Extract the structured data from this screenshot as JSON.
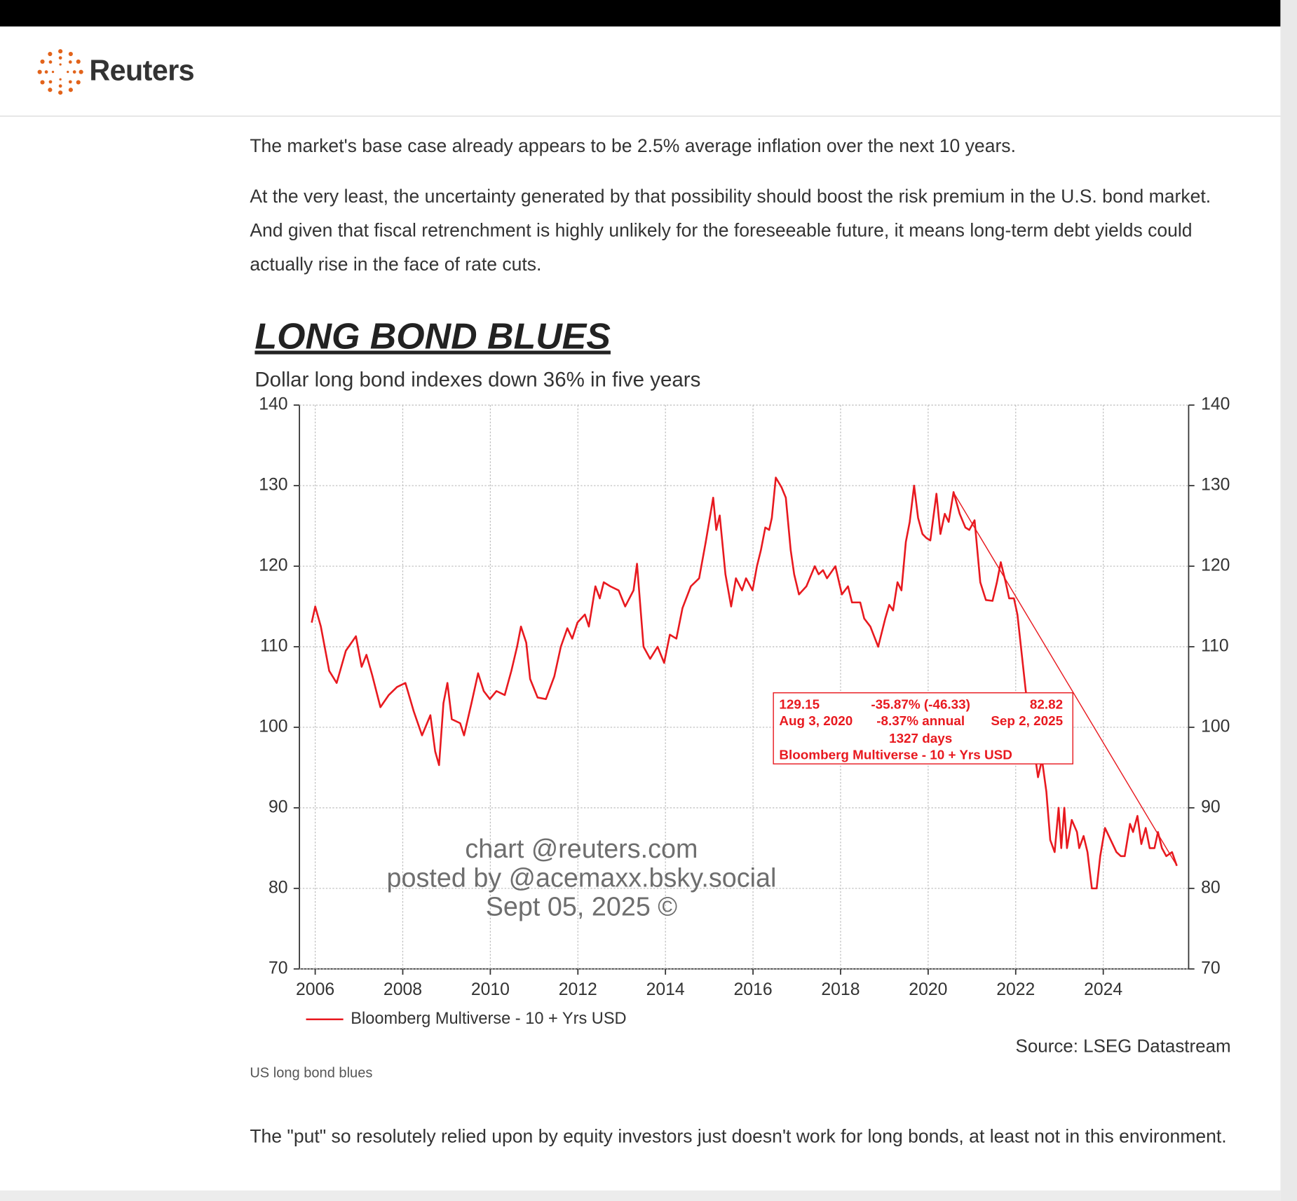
{
  "header": {
    "brand": "Reuters"
  },
  "article": {
    "paragraphs": [
      "The market's base case already appears to be 2.5% average inflation over the next 10 years.",
      "At the very least, the uncertainty generated by that possibility should boost the risk premium in the U.S. bond market. And given that fiscal retrenchment is highly unlikely for the foreseeable future, it means long-term debt yields could actually rise in the face of rate cuts."
    ],
    "caption": "US long bond blues",
    "closing": "The \"put\" so resolutely relied upon by equity investors just doesn't work for long bonds, at least not in this environment."
  },
  "chart_data": {
    "type": "line",
    "title": "LONG BOND BLUES",
    "subtitle": "Dollar long bond indexes down 36% in five years",
    "source": "Source: LSEG Datastream",
    "watermark": [
      "chart @reuters.com",
      "posted by @acemaxx.bsky.social",
      "Sept 05, 2025 ©"
    ],
    "x": [
      2005.92,
      2006.0,
      2006.13,
      2006.32,
      2006.49,
      2006.7,
      2006.93,
      2007.06,
      2007.17,
      2007.3,
      2007.49,
      2007.68,
      2007.87,
      2008.06,
      2008.25,
      2008.44,
      2008.63,
      2008.74,
      2008.83,
      2008.93,
      2009.02,
      2009.12,
      2009.31,
      2009.4,
      2009.57,
      2009.72,
      2009.85,
      2009.99,
      2010.14,
      2010.33,
      2010.48,
      2010.61,
      2010.7,
      2010.82,
      2010.91,
      2011.08,
      2011.27,
      2011.46,
      2011.61,
      2011.76,
      2011.87,
      2011.99,
      2012.16,
      2012.25,
      2012.4,
      2012.5,
      2012.59,
      2012.74,
      2012.93,
      2013.08,
      2013.27,
      2013.35,
      2013.5,
      2013.65,
      2013.82,
      2013.97,
      2014.1,
      2014.25,
      2014.39,
      2014.58,
      2014.77,
      2014.92,
      2015.09,
      2015.16,
      2015.24,
      2015.37,
      2015.5,
      2015.61,
      2015.75,
      2015.84,
      2015.99,
      2016.09,
      2016.18,
      2016.28,
      2016.37,
      2016.43,
      2016.52,
      2016.65,
      2016.75,
      2016.86,
      2016.94,
      2017.05,
      2017.22,
      2017.41,
      2017.5,
      2017.6,
      2017.69,
      2017.88,
      2018.03,
      2018.17,
      2018.26,
      2018.45,
      2018.54,
      2018.68,
      2018.86,
      2019.02,
      2019.11,
      2019.2,
      2019.3,
      2019.39,
      2019.49,
      2019.58,
      2019.68,
      2019.77,
      2019.87,
      2019.96,
      2020.05,
      2020.19,
      2020.28,
      2020.38,
      2020.47,
      2020.58,
      2020.72,
      2020.85,
      2020.94,
      2021.06,
      2021.19,
      2021.32,
      2021.47,
      2021.57,
      2021.66,
      2021.77,
      2021.85,
      2021.96,
      2022.04,
      2022.23,
      2022.38,
      2022.51,
      2022.6,
      2022.7,
      2022.79,
      2022.89,
      2022.98,
      2023.04,
      2023.11,
      2023.17,
      2023.28,
      2023.4,
      2023.45,
      2023.55,
      2023.64,
      2023.74,
      2023.85,
      2023.93,
      2024.04,
      2024.17,
      2024.3,
      2024.4,
      2024.49,
      2024.61,
      2024.68,
      2024.78,
      2024.87,
      2024.97,
      2025.06,
      2025.17,
      2025.25,
      2025.34,
      2025.44,
      2025.57,
      2025.68
    ],
    "series": [
      {
        "name": "Bloomberg Multiverse - 10 + Yrs USD",
        "color": "#e8191f",
        "values": [
          113,
          115,
          112.5,
          107,
          105.5,
          109.5,
          111.3,
          107.5,
          109,
          106.5,
          102.5,
          104,
          105,
          105.5,
          102,
          99,
          101.5,
          97,
          95.3,
          103,
          105.5,
          101,
          100.5,
          99,
          103,
          106.7,
          104.5,
          103.5,
          104.5,
          104,
          107,
          110,
          112.5,
          110.5,
          106,
          103.7,
          103.5,
          106.3,
          110,
          112.3,
          111,
          113,
          114,
          112.5,
          117.5,
          116,
          118,
          117.5,
          117,
          115,
          117,
          120.3,
          110,
          108.5,
          110,
          108,
          111.5,
          111,
          114.8,
          117.5,
          118.5,
          123,
          128.5,
          124.5,
          126.3,
          119,
          115,
          118.5,
          117,
          118.5,
          117,
          120,
          122,
          124.8,
          124.5,
          126,
          131,
          129.8,
          128.5,
          122,
          119,
          116.5,
          117.5,
          120,
          119,
          119.5,
          118.5,
          120,
          116.5,
          117.5,
          115.5,
          115.5,
          113.5,
          112.5,
          110,
          113.5,
          115.2,
          114.5,
          118,
          117,
          123,
          125.5,
          130,
          126,
          124,
          123.5,
          123.2,
          129,
          124,
          126.5,
          125.5,
          129.2,
          126.5,
          124.8,
          124.5,
          125.7,
          118,
          115.8,
          115.7,
          118,
          120.5,
          118,
          116,
          116,
          114,
          104.5,
          99,
          93.8,
          96,
          92,
          86,
          84.5,
          90,
          85,
          90,
          85,
          88.5,
          87,
          85,
          86.5,
          84.5,
          80,
          80,
          84,
          87.5,
          86,
          84.5,
          84,
          84,
          88,
          87,
          89,
          85.5,
          87.5,
          85,
          85,
          87,
          85,
          84,
          84.5,
          82.8
        ]
      }
    ],
    "xlim": [
      2005.64,
      2025.95
    ],
    "xticks": [
      2006,
      2008,
      2010,
      2012,
      2014,
      2016,
      2018,
      2020,
      2022,
      2024
    ],
    "ylim": [
      70,
      140
    ],
    "yticks": [
      70,
      80,
      90,
      100,
      110,
      120,
      130,
      140
    ],
    "y2lim": [
      70,
      140
    ],
    "y2ticks": [
      70,
      80,
      90,
      100,
      110,
      120,
      130,
      140
    ],
    "grid": true,
    "legend_position": "bottom-left",
    "annotation": {
      "start_value": 129.15,
      "start_date": "Aug 3, 2020",
      "change": "-35.87% (-46.33)",
      "annual": "-8.37% annual",
      "days": "1327 days",
      "series": "Bloomberg Multiverse - 10 + Yrs USD",
      "end_value": 82.82,
      "end_date": "Sep 2, 2025"
    }
  }
}
